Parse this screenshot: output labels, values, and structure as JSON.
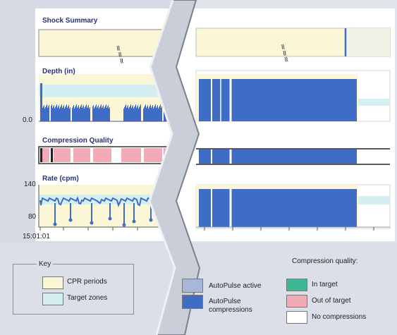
{
  "panels": {
    "shock": {
      "title": "Shock Summary"
    },
    "depth": {
      "title": "Depth (in)",
      "y_min_label": "0.0"
    },
    "quality": {
      "title": "Compression Quality"
    },
    "rate": {
      "title": "Rate (cpm)",
      "y_max_label": "140",
      "y_min_label": "80"
    }
  },
  "time_start": "15:01:01",
  "key": {
    "title": "Key",
    "items": [
      {
        "label": "CPR periods",
        "color": "#fbf7d6"
      },
      {
        "label": "Target zones",
        "color": "#d5eef0"
      }
    ]
  },
  "autopulse": {
    "items": [
      {
        "label": "AutoPulse active",
        "color": "#a8b6d8"
      },
      {
        "label": "AutoPulse compressions",
        "color": "#3f6cc4"
      }
    ]
  },
  "quality_legend": {
    "title": "Compression quality:",
    "items": [
      {
        "label": "In target",
        "color": "#3fb892"
      },
      {
        "label": "Out of target",
        "color": "#f1aab6"
      },
      {
        "label": "No compressions",
        "color": "#ffffff"
      }
    ]
  },
  "colors": {
    "cpr_period": "#fbf7d6",
    "target_zone": "#d5eef0",
    "bar_fill": "#3f6cc4",
    "panel_bg": "#d7dbe3"
  }
}
